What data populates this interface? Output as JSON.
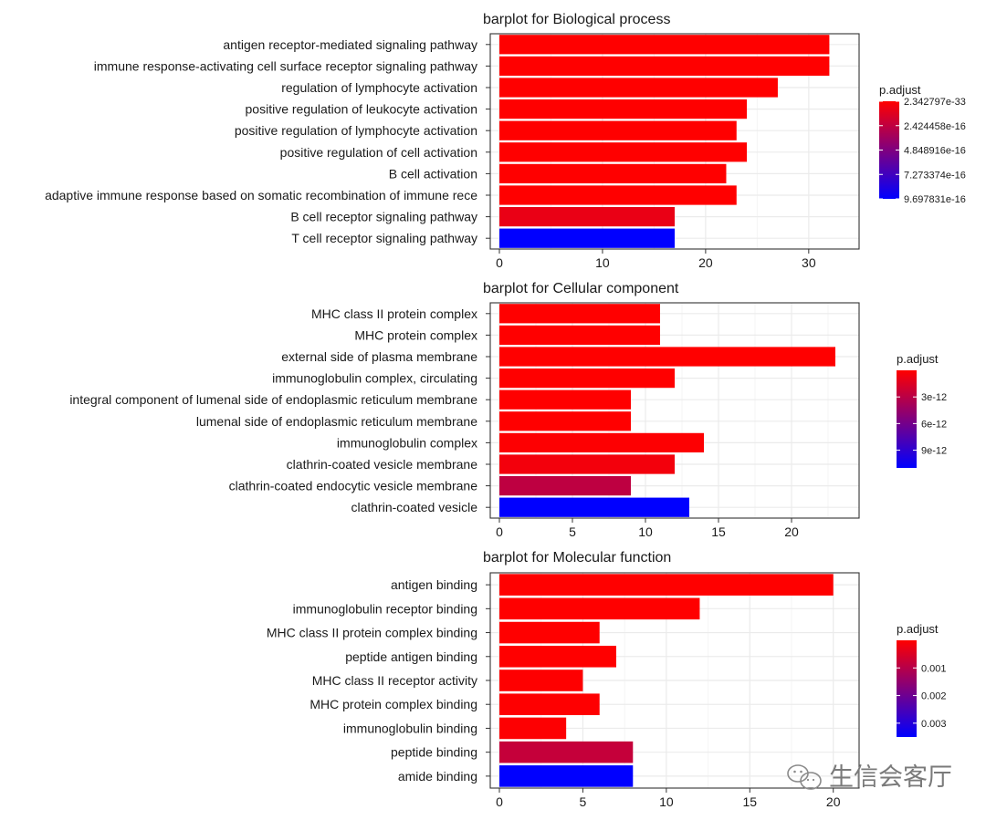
{
  "chart_data": [
    {
      "type": "bar",
      "orientation": "horizontal",
      "title": "barplot for Biological process",
      "xlabel": "",
      "ylabel": "",
      "xlim": [
        0,
        34
      ],
      "xticks": [
        0,
        10,
        20,
        30
      ],
      "categories": [
        "antigen receptor-mediated signaling pathway",
        "immune response-activating cell surface receptor signaling pathway",
        "regulation of lymphocyte activation",
        "positive regulation of leukocyte activation",
        "positive regulation of lymphocyte activation",
        "positive regulation of cell activation",
        "B cell activation",
        "adaptive immune response based on somatic recombination of immune rece",
        "B cell receptor signaling pathway",
        "T cell receptor signaling pathway"
      ],
      "values": [
        32,
        32,
        27,
        24,
        23,
        24,
        22,
        23,
        17,
        17
      ],
      "p_adjust": [
        2.342797e-33,
        1e-30,
        1e-25,
        1e-24,
        1e-23,
        1e-24,
        1e-22,
        1e-23,
        8e-17,
        9.697831e-16
      ],
      "legend": {
        "title": "p.adjust",
        "min": 2.342797e-33,
        "max": 9.697831e-16,
        "ticks": [
          {
            "value": 2.342797e-33,
            "label": "2.342797e-33"
          },
          {
            "value": 2.424458e-16,
            "label": "2.424458e-16"
          },
          {
            "value": 4.848916e-16,
            "label": "4.848916e-16"
          },
          {
            "value": 7.273374e-16,
            "label": "7.273374e-16"
          },
          {
            "value": 9.697831e-16,
            "label": "9.697831e-16"
          }
        ]
      }
    },
    {
      "type": "bar",
      "orientation": "horizontal",
      "title": "barplot for Cellular component",
      "xlabel": "",
      "ylabel": "",
      "xlim": [
        0,
        24
      ],
      "xticks": [
        0,
        5,
        10,
        15,
        20
      ],
      "categories": [
        "MHC class II protein complex",
        "MHC protein complex",
        "external side of plasma membrane",
        "immunoglobulin complex, circulating",
        "integral component of lumenal side of endoplasmic reticulum membrane",
        "lumenal side of endoplasmic reticulum membrane",
        "immunoglobulin complex",
        "clathrin-coated vesicle membrane",
        "clathrin-coated endocytic vesicle membrane",
        "clathrin-coated vesicle"
      ],
      "values": [
        11,
        11,
        23,
        12,
        9,
        9,
        14,
        12,
        9,
        13
      ],
      "p_adjust": [
        1e-15,
        1e-15,
        1e-15,
        1e-14,
        2e-14,
        2e-14,
        1e-13,
        5e-13,
        2.8e-12,
        1.1e-11
      ],
      "legend": {
        "title": "p.adjust",
        "min": 0,
        "max": 1.1e-11,
        "ticks": [
          {
            "value": 3e-12,
            "label": "3e-12"
          },
          {
            "value": 6e-12,
            "label": "6e-12"
          },
          {
            "value": 9e-12,
            "label": "9e-12"
          }
        ]
      }
    },
    {
      "type": "bar",
      "orientation": "horizontal",
      "title": "barplot for Molecular function",
      "xlabel": "",
      "ylabel": "",
      "xlim": [
        0,
        21
      ],
      "xticks": [
        0,
        5,
        10,
        15,
        20
      ],
      "categories": [
        "antigen binding",
        "immunoglobulin receptor binding",
        "MHC class II protein complex binding",
        "peptide antigen binding",
        "MHC class II receptor activity",
        "MHC protein complex binding",
        "immunoglobulin binding",
        "peptide binding",
        "amide binding"
      ],
      "values": [
        20,
        12,
        6,
        7,
        5,
        6,
        4,
        8,
        8
      ],
      "p_adjust": [
        1e-12,
        1e-08,
        1e-06,
        1e-06,
        1e-05,
        2e-05,
        3e-05,
        0.0008,
        0.0035
      ],
      "legend": {
        "title": "p.adjust",
        "min": 0,
        "max": 0.0035,
        "ticks": [
          {
            "value": 0.001,
            "label": "0.001"
          },
          {
            "value": 0.002,
            "label": "0.002"
          },
          {
            "value": 0.003,
            "label": "0.003"
          }
        ]
      }
    }
  ],
  "colors": {
    "low": "#ff0000",
    "high": "#0000ff",
    "panel_border": "#333333",
    "grid_major": "#ebebeb",
    "grid_minor": "#f5f5f5"
  },
  "watermark": {
    "text": "生信会客厅",
    "icon": "wechat-icon"
  }
}
